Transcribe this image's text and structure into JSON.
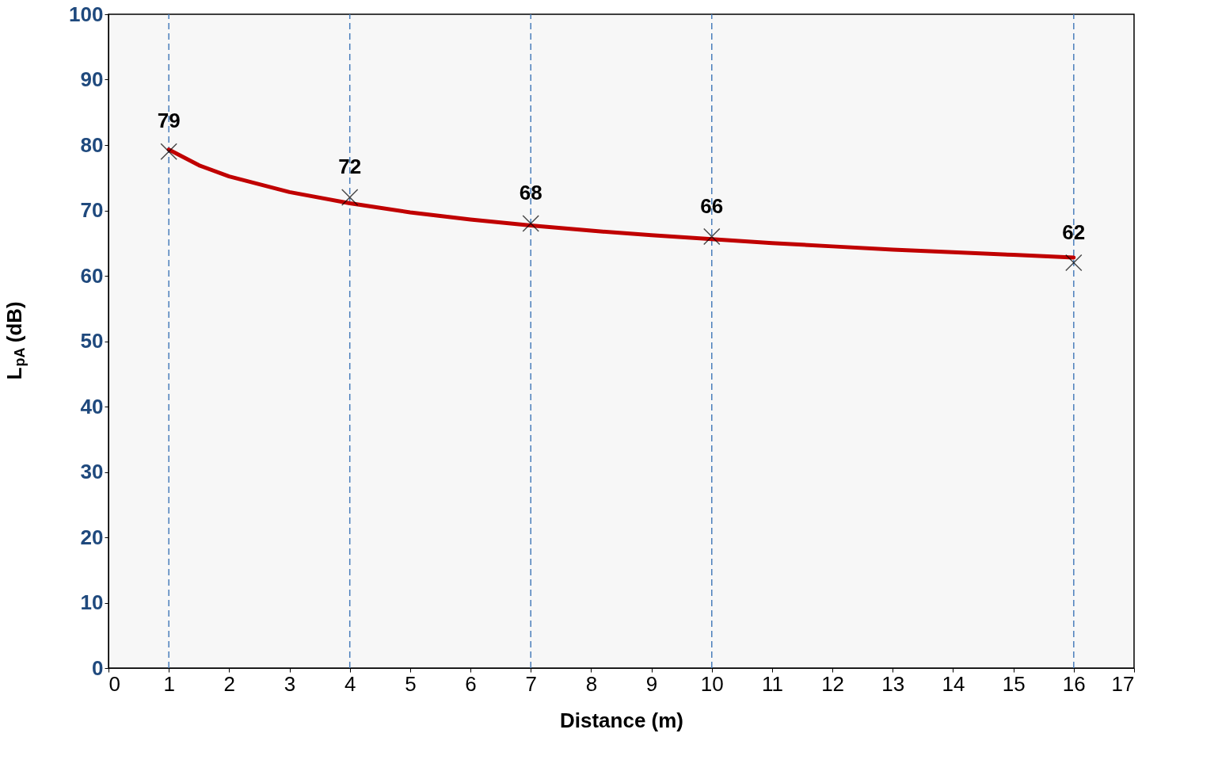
{
  "chart_data": {
    "type": "scatter",
    "xlabel": "Distance (m)",
    "ylabel": "L$_{pA}$ (dB)",
    "xlim": [
      0,
      17
    ],
    "xticks": [
      0,
      1,
      2,
      3,
      4,
      5,
      6,
      7,
      8,
      9,
      10,
      11,
      12,
      13,
      14,
      15,
      16,
      17
    ],
    "ylim": [
      0,
      100
    ],
    "yticks": [
      0,
      10,
      20,
      30,
      40,
      50,
      60,
      70,
      80,
      90,
      100
    ],
    "series": [
      {
        "type": "line",
        "color": "#c00000",
        "x": [
          1,
          1.5,
          2,
          3,
          4,
          5,
          6,
          7,
          8,
          9,
          10,
          11,
          12,
          13,
          14,
          15,
          16
        ],
        "values": [
          79.3,
          76.9,
          75.2,
          72.8,
          71.1,
          69.7,
          68.6,
          67.7,
          66.9,
          66.2,
          65.6,
          65.0,
          64.5,
          64.0,
          63.6,
          63.2,
          62.8
        ]
      },
      {
        "color": "#000000",
        "marker": "cross",
        "x": [
          1,
          4,
          7,
          10,
          16
        ],
        "values": [
          79,
          72,
          68,
          66,
          62
        ],
        "data_labels": true
      }
    ],
    "ref_lines": [
      {
        "axis": "x",
        "value": 1,
        "color": "#4a7ebb",
        "line_style": "dashed"
      },
      {
        "axis": "x",
        "value": 4,
        "color": "#4a7ebb",
        "line_style": "dashed"
      },
      {
        "axis": "x",
        "value": 7,
        "color": "#4a7ebb",
        "line_style": "dashed"
      },
      {
        "axis": "x",
        "value": 10,
        "color": "#4a7ebb",
        "line_style": "dashed"
      },
      {
        "axis": "x",
        "value": 16,
        "color": "#4a7ebb",
        "line_style": "dashed"
      }
    ]
  }
}
